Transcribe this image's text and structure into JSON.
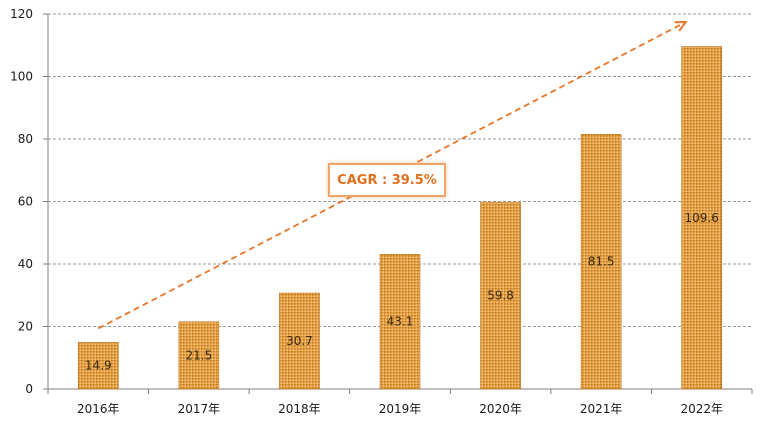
{
  "chart_data": {
    "type": "bar",
    "categories": [
      "2016年",
      "2017年",
      "2018年",
      "2019年",
      "2020年",
      "2021年",
      "2022年"
    ],
    "values": [
      14.9,
      21.5,
      30.7,
      43.1,
      59.8,
      81.5,
      109.6
    ],
    "data_labels": [
      "14.9",
      "21.5",
      "30.7",
      "43.1",
      "59.8",
      "81.5",
      "109.6"
    ],
    "ylim": [
      0,
      120
    ],
    "yticks": [
      "0",
      "20",
      "40",
      "60",
      "80",
      "100",
      "120"
    ],
    "grid": true,
    "bar_color": "#d4892a",
    "annotation": {
      "text": "CAGR : 39.5%",
      "color": "#e0701f",
      "arrow": "dashed, rising from first bar to last bar"
    }
  }
}
